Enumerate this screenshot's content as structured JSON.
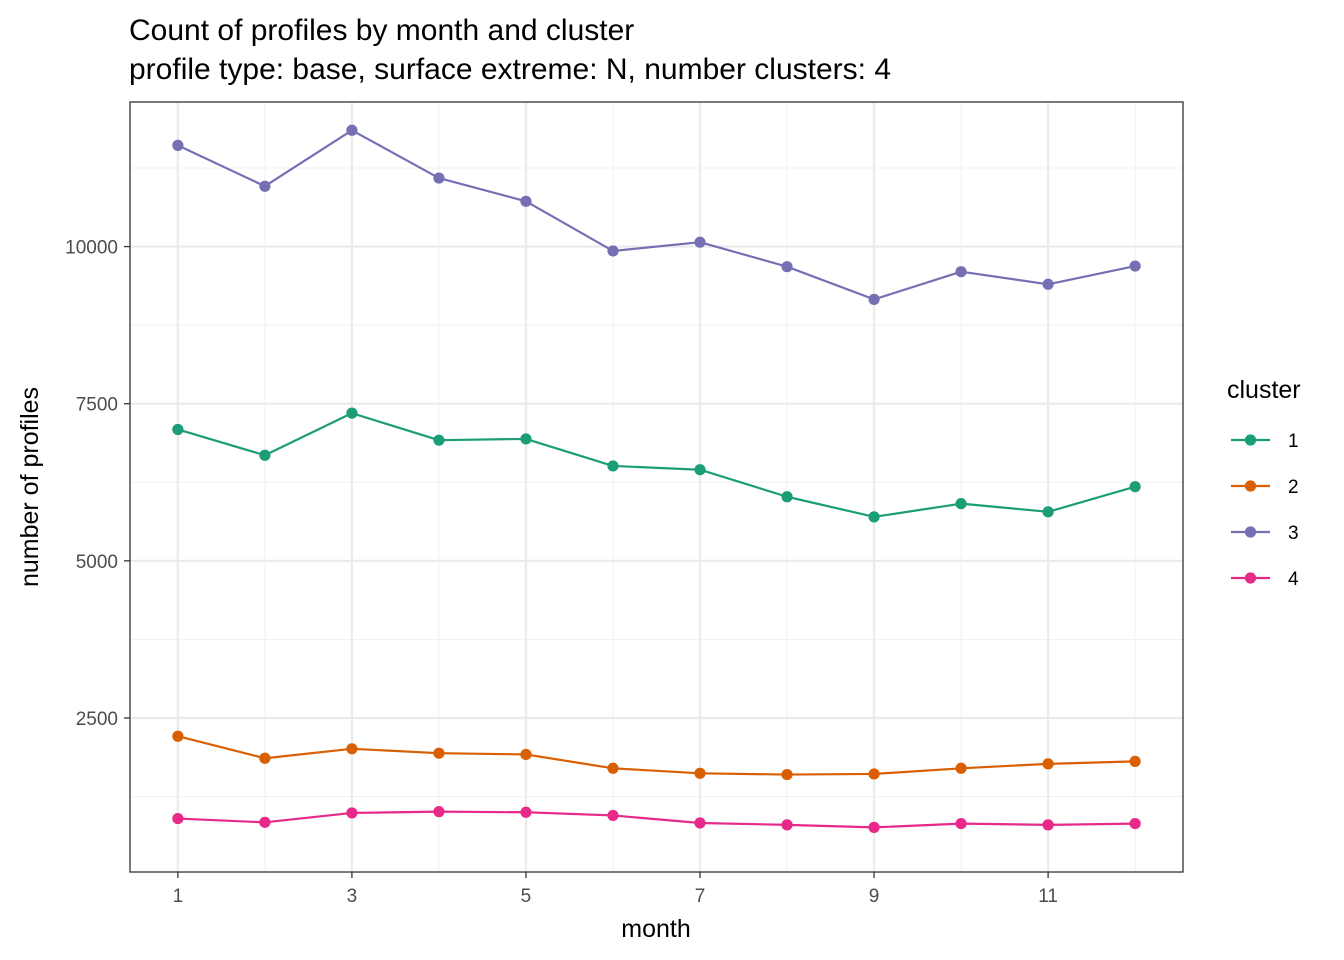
{
  "chart_data": {
    "type": "line",
    "title": "Count of profiles by month and cluster",
    "subtitle": "profile type: base, surface extreme: N, number clusters: 4",
    "xlabel": "month",
    "ylabel": "number of profiles",
    "x": [
      1,
      2,
      3,
      4,
      5,
      6,
      7,
      8,
      9,
      10,
      11,
      12
    ],
    "x_ticks": [
      1,
      3,
      5,
      7,
      9,
      11
    ],
    "y_ticks": [
      2500,
      5000,
      7500,
      10000
    ],
    "xlim": [
      0.45,
      12.55
    ],
    "ylim": [
      50,
      12300
    ],
    "grid": true,
    "legend_title": "cluster",
    "legend_position": "right",
    "series": [
      {
        "name": "1",
        "color": "#1B9E77",
        "values": [
          7090,
          6680,
          7350,
          6920,
          6940,
          6510,
          6450,
          6020,
          5700,
          5910,
          5780,
          6180
        ]
      },
      {
        "name": "2",
        "color": "#D95F02",
        "values": [
          2210,
          1860,
          2010,
          1940,
          1920,
          1700,
          1620,
          1600,
          1610,
          1700,
          1770,
          1810
        ]
      },
      {
        "name": "3",
        "color": "#7570B3",
        "values": [
          11610,
          10960,
          11850,
          11090,
          10720,
          9930,
          10070,
          9680,
          9160,
          9600,
          9400,
          9690
        ]
      },
      {
        "name": "4",
        "color": "#E7298A",
        "values": [
          900,
          840,
          990,
          1010,
          1000,
          950,
          830,
          800,
          760,
          820,
          800,
          820
        ]
      }
    ]
  }
}
